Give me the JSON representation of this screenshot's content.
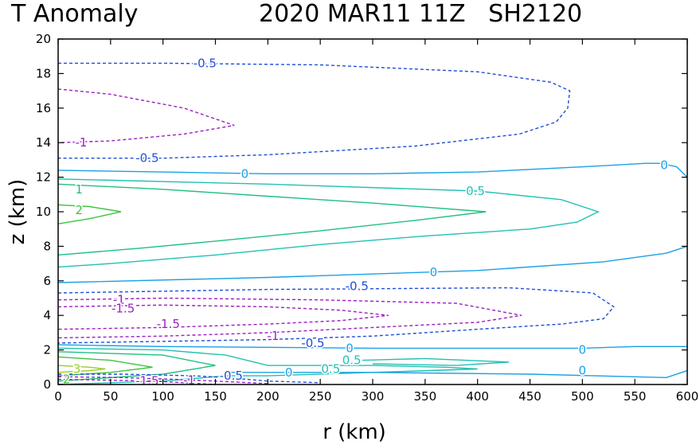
{
  "chart_data": {
    "type": "contour",
    "title_left": "T Anomaly",
    "title_right": "2020 MAR11 11Z   SH2120",
    "xlabel": "r (km)",
    "ylabel": "z (km)",
    "xlim": [
      0,
      600
    ],
    "ylim": [
      0,
      20
    ],
    "x_ticks": [
      0,
      50,
      100,
      150,
      200,
      250,
      300,
      350,
      400,
      450,
      500,
      550,
      600
    ],
    "y_ticks": [
      0,
      2,
      4,
      6,
      8,
      10,
      12,
      14,
      16,
      18,
      20
    ],
    "grid": false,
    "levels": [
      {
        "value": -1.5,
        "color": "#9b1fc0",
        "dashed": true
      },
      {
        "value": -1,
        "color": "#9b1fc0",
        "dashed": true
      },
      {
        "value": -0.5,
        "color": "#1f4ed8",
        "dashed": true
      },
      {
        "value": 0,
        "color": "#1aa0e6",
        "dashed": false
      },
      {
        "value": 0.5,
        "color": "#22c0b4",
        "dashed": false
      },
      {
        "value": 1,
        "color": "#20c080",
        "dashed": false
      },
      {
        "value": 2,
        "color": "#3cc43c",
        "dashed": false
      },
      {
        "value": 3,
        "color": "#9ccc28",
        "dashed": false
      }
    ],
    "contours": [
      {
        "level": -0.5,
        "color": "#1f4ed8",
        "dashed": true,
        "points": [
          [
            0,
            18.6
          ],
          [
            100,
            18.6
          ],
          [
            250,
            18.5
          ],
          [
            400,
            18.1
          ],
          [
            470,
            17.5
          ],
          [
            488,
            17.0
          ],
          [
            486,
            16.0
          ],
          [
            475,
            15.2
          ],
          [
            440,
            14.5
          ],
          [
            340,
            13.8
          ],
          [
            200,
            13.3
          ],
          [
            100,
            13.1
          ],
          [
            0,
            13.1
          ]
        ]
      },
      {
        "level": -1,
        "color": "#9b1fc0",
        "dashed": true,
        "points": [
          [
            0,
            17.1
          ],
          [
            50,
            16.8
          ],
          [
            120,
            16.0
          ],
          [
            168,
            15.0
          ],
          [
            120,
            14.5
          ],
          [
            50,
            14.1
          ],
          [
            0,
            14.0
          ]
        ]
      },
      {
        "level": 0,
        "color": "#1aa0e6",
        "dashed": false,
        "points": [
          [
            0,
            12.4
          ],
          [
            100,
            12.3
          ],
          [
            200,
            12.2
          ],
          [
            300,
            12.2
          ],
          [
            400,
            12.3
          ],
          [
            500,
            12.6
          ],
          [
            560,
            12.8
          ],
          [
            575,
            12.8
          ],
          [
            590,
            12.6
          ],
          [
            600,
            12.0
          ]
        ]
      },
      {
        "level": 1,
        "color": "#20c080",
        "dashed": false,
        "points": [
          [
            0,
            11.6
          ],
          [
            100,
            11.3
          ],
          [
            200,
            10.9
          ],
          [
            300,
            10.5
          ],
          [
            408,
            10.0
          ],
          [
            340,
            9.5
          ],
          [
            250,
            8.9
          ],
          [
            150,
            8.3
          ],
          [
            80,
            7.9
          ],
          [
            0,
            7.5
          ]
        ]
      },
      {
        "level": 0.5,
        "color": "#22c0b4",
        "dashed": false,
        "points": [
          [
            0,
            11.9
          ],
          [
            200,
            11.6
          ],
          [
            400,
            11.2
          ],
          [
            480,
            10.7
          ],
          [
            515,
            10.0
          ],
          [
            495,
            9.4
          ],
          [
            450,
            9.0
          ],
          [
            350,
            8.6
          ],
          [
            250,
            8.1
          ],
          [
            150,
            7.5
          ],
          [
            50,
            7.0
          ],
          [
            0,
            6.8
          ]
        ]
      },
      {
        "level": 2,
        "color": "#3cc43c",
        "dashed": false,
        "points": [
          [
            0,
            10.4
          ],
          [
            30,
            10.3
          ],
          [
            60,
            10.0
          ],
          [
            30,
            9.6
          ],
          [
            0,
            9.3
          ]
        ]
      },
      {
        "level": 0,
        "color": "#1aa0e6",
        "dashed": false,
        "points": [
          [
            0,
            5.9
          ],
          [
            200,
            6.2
          ],
          [
            400,
            6.6
          ],
          [
            520,
            7.1
          ],
          [
            580,
            7.6
          ],
          [
            600,
            8.0
          ]
        ]
      },
      {
        "level": -0.5,
        "color": "#1f4ed8",
        "dashed": true,
        "points": [
          [
            0,
            5.3
          ],
          [
            200,
            5.5
          ],
          [
            430,
            5.6
          ],
          [
            510,
            5.3
          ],
          [
            530,
            4.5
          ],
          [
            520,
            3.8
          ],
          [
            480,
            3.5
          ],
          [
            400,
            3.2
          ],
          [
            300,
            2.8
          ],
          [
            200,
            2.6
          ],
          [
            100,
            2.5
          ],
          [
            0,
            2.4
          ]
        ]
      },
      {
        "level": -1,
        "color": "#9b1fc0",
        "dashed": true,
        "points": [
          [
            0,
            4.9
          ],
          [
            100,
            5.0
          ],
          [
            250,
            4.9
          ],
          [
            380,
            4.7
          ],
          [
            442,
            4.0
          ],
          [
            400,
            3.6
          ],
          [
            300,
            3.3
          ],
          [
            200,
            3.0
          ],
          [
            100,
            2.8
          ],
          [
            0,
            2.7
          ]
        ]
      },
      {
        "level": -1.5,
        "color": "#9b1fc0",
        "dashed": true,
        "points": [
          [
            0,
            4.5
          ],
          [
            100,
            4.6
          ],
          [
            200,
            4.5
          ],
          [
            270,
            4.3
          ],
          [
            315,
            4.0
          ],
          [
            270,
            3.7
          ],
          [
            200,
            3.5
          ],
          [
            100,
            3.3
          ],
          [
            0,
            3.2
          ]
        ]
      },
      {
        "level": 0,
        "color": "#1aa0e6",
        "dashed": false,
        "points": [
          [
            0,
            2.3
          ],
          [
            100,
            2.2
          ],
          [
            300,
            2.1
          ],
          [
            400,
            2.1
          ],
          [
            500,
            2.1
          ],
          [
            550,
            2.2
          ],
          [
            600,
            2.2
          ]
        ]
      },
      {
        "level": 0.5,
        "color": "#22c0b4",
        "dashed": false,
        "points": [
          [
            0,
            2.1
          ],
          [
            100,
            2.0
          ],
          [
            160,
            1.7
          ],
          [
            200,
            1.1
          ],
          [
            300,
            1.1
          ],
          [
            370,
            1.0
          ],
          [
            400,
            0.9
          ],
          [
            300,
            0.7
          ],
          [
            200,
            0.5
          ],
          [
            160,
            0.5
          ],
          [
            100,
            0.2
          ],
          [
            0,
            0.0
          ]
        ]
      },
      {
        "level": 1,
        "color": "#20c080",
        "dashed": false,
        "points": [
          [
            0,
            1.9
          ],
          [
            100,
            1.7
          ],
          [
            150,
            1.1
          ],
          [
            100,
            0.6
          ],
          [
            0,
            0.2
          ]
        ]
      },
      {
        "level": 2,
        "color": "#3cc43c",
        "dashed": false,
        "points": [
          [
            0,
            1.6
          ],
          [
            50,
            1.4
          ],
          [
            90,
            1.0
          ],
          [
            50,
            0.7
          ],
          [
            0,
            0.5
          ]
        ]
      },
      {
        "level": 3,
        "color": "#9ccc28",
        "dashed": false,
        "points": [
          [
            0,
            1.1
          ],
          [
            30,
            1.0
          ],
          [
            45,
            0.9
          ],
          [
            30,
            0.8
          ],
          [
            0,
            0.7
          ]
        ]
      },
      {
        "level": 0.5,
        "color": "#22c0b4",
        "dashed": false,
        "points": [
          [
            290,
            1.4
          ],
          [
            350,
            1.5
          ],
          [
            430,
            1.3
          ],
          [
            380,
            1.1
          ],
          [
            300,
            1.2
          ]
        ]
      },
      {
        "level": 0,
        "color": "#1aa0e6",
        "dashed": false,
        "points": [
          [
            160,
            0.7
          ],
          [
            300,
            0.7
          ],
          [
            450,
            0.6
          ],
          [
            580,
            0.4
          ],
          [
            600,
            0.8
          ]
        ]
      },
      {
        "level": -0.5,
        "color": "#1f4ed8",
        "dashed": true,
        "points": [
          [
            0,
            0.6
          ],
          [
            60,
            0.6
          ],
          [
            130,
            0.5
          ],
          [
            160,
            0.4
          ],
          [
            200,
            0.2
          ],
          [
            250,
            0.1
          ]
        ]
      },
      {
        "level": -1,
        "color": "#9b1fc0",
        "dashed": true,
        "points": [
          [
            0,
            0.45
          ],
          [
            60,
            0.4
          ],
          [
            110,
            0.3
          ],
          [
            150,
            0.2
          ],
          [
            200,
            0.05
          ]
        ]
      },
      {
        "level": -1.5,
        "color": "#9b1fc0",
        "dashed": true,
        "points": [
          [
            0,
            0.3
          ],
          [
            50,
            0.25
          ],
          [
            90,
            0.2
          ],
          [
            120,
            0.1
          ],
          [
            150,
            0.0
          ]
        ]
      }
    ],
    "labels": [
      {
        "text": "-0.5",
        "x": 140,
        "y": 18.6,
        "color": "#1f4ed8"
      },
      {
        "text": "-1",
        "x": 22,
        "y": 14.0,
        "color": "#9b1fc0"
      },
      {
        "text": "-0.5",
        "x": 85,
        "y": 13.1,
        "color": "#1f4ed8"
      },
      {
        "text": "0",
        "x": 178,
        "y": 12.2,
        "color": "#1aa0e6"
      },
      {
        "text": "0",
        "x": 578,
        "y": 12.7,
        "color": "#1aa0e6"
      },
      {
        "text": "1",
        "x": 20,
        "y": 11.3,
        "color": "#20c080"
      },
      {
        "text": "0.5",
        "x": 398,
        "y": 11.2,
        "color": "#22c0b4"
      },
      {
        "text": "2",
        "x": 20,
        "y": 10.1,
        "color": "#3cc43c"
      },
      {
        "text": "0",
        "x": 358,
        "y": 6.5,
        "color": "#1aa0e6"
      },
      {
        "text": "-0.5",
        "x": 285,
        "y": 5.7,
        "color": "#1f4ed8"
      },
      {
        "text": "-1",
        "x": 58,
        "y": 4.9,
        "color": "#9b1fc0"
      },
      {
        "text": "-1.5",
        "x": 62,
        "y": 4.4,
        "color": "#9b1fc0"
      },
      {
        "text": "-1.5",
        "x": 105,
        "y": 3.5,
        "color": "#9b1fc0"
      },
      {
        "text": "-1",
        "x": 205,
        "y": 2.8,
        "color": "#9b1fc0"
      },
      {
        "text": "-0.5",
        "x": 243,
        "y": 2.4,
        "color": "#1f4ed8"
      },
      {
        "text": "0",
        "x": 278,
        "y": 2.1,
        "color": "#1aa0e6"
      },
      {
        "text": "0",
        "x": 500,
        "y": 2.0,
        "color": "#1aa0e6"
      },
      {
        "text": "0.5",
        "x": 280,
        "y": 1.4,
        "color": "#22c0b4"
      },
      {
        "text": "0.5",
        "x": 260,
        "y": 0.9,
        "color": "#22c0b4"
      },
      {
        "text": "0",
        "x": 220,
        "y": 0.7,
        "color": "#1aa0e6"
      },
      {
        "text": "0",
        "x": 500,
        "y": 0.8,
        "color": "#1aa0e6"
      },
      {
        "text": "-0.5",
        "x": 165,
        "y": 0.5,
        "color": "#1f4ed8"
      },
      {
        "text": "3",
        "x": 18,
        "y": 0.9,
        "color": "#9ccc28"
      },
      {
        "text": "2",
        "x": 8,
        "y": 0.3,
        "color": "#3cc43c"
      },
      {
        "text": "-1.5",
        "x": 85,
        "y": 0.2,
        "color": "#9b1fc0"
      },
      {
        "text": "-1",
        "x": 125,
        "y": 0.25,
        "color": "#9b1fc0"
      }
    ]
  }
}
